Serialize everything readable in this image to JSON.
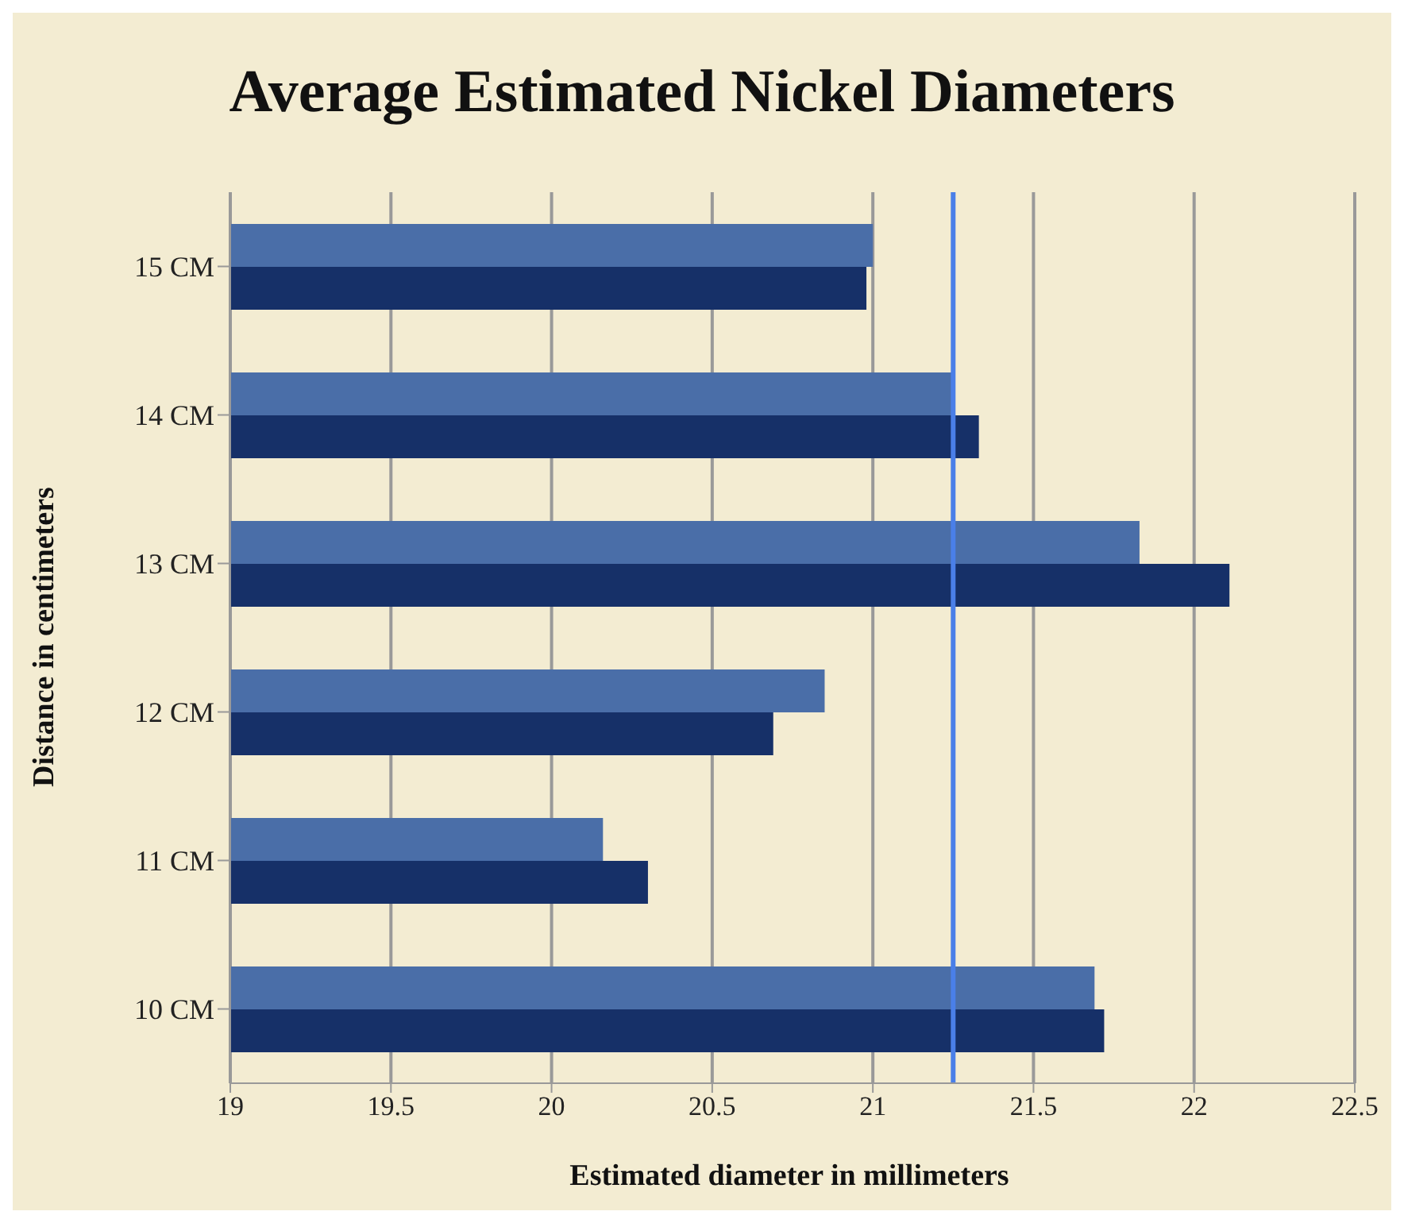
{
  "chart_data": {
    "type": "bar",
    "orientation": "horizontal",
    "title": "Average Estimated Nickel Diameters",
    "xlabel": "Estimated diameter in millimeters",
    "ylabel": "Distance in centimeters",
    "categories": [
      "15 CM",
      "14 CM",
      "13 CM",
      "12 CM",
      "11 CM",
      "10 CM"
    ],
    "series": [
      {
        "color": "#4a6ea8",
        "values": [
          21.0,
          21.25,
          21.83,
          20.85,
          20.16,
          21.69
        ]
      },
      {
        "color": "#163068",
        "values": [
          20.98,
          21.33,
          22.11,
          20.69,
          20.3,
          21.72
        ]
      }
    ],
    "xlim": [
      19,
      22.5
    ],
    "xticks": [
      19,
      19.5,
      20,
      20.5,
      21,
      21.5,
      22,
      22.5
    ],
    "grid": "x",
    "ref_lines": [
      {
        "axis": "x",
        "value": 21.25,
        "color": "#4a7fe8"
      }
    ]
  }
}
